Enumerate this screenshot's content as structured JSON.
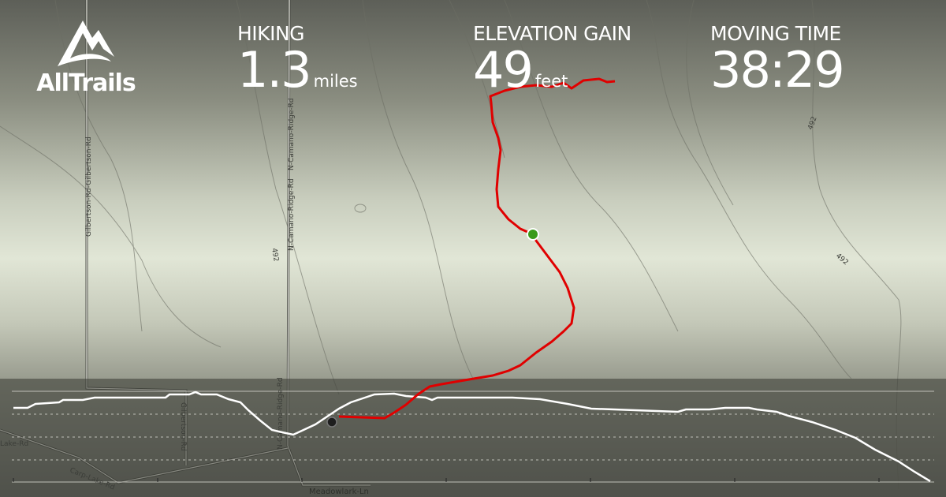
{
  "brand": {
    "name": "AllTrails"
  },
  "stats": [
    {
      "label": "HIKING",
      "value": "1.3",
      "unit": "miles"
    },
    {
      "label": "ELEVATION GAIN",
      "value": "49",
      "unit": "feet"
    },
    {
      "label": "MOVING TIME",
      "value": "38:29",
      "unit": ""
    }
  ],
  "map": {
    "roads": {
      "gilbertson_top": "Gilbertson-Rd-Gilbertson-Rd",
      "gilbertson": "Gilbertson-Rd",
      "camano_top": "N-Camano-Ridge-Rd",
      "camano": "N-Camano-Ridge-Rd",
      "camano_bottom": "N-Camano-Ridge-Rd",
      "carp_lake": "Carp-Lake-Rd",
      "lake": "Lake-Rd",
      "meadowlark": "Meadowlark-Ln"
    },
    "contour_label": "492",
    "track_color": "#e00000",
    "start_marker_color": "#3a9a1a",
    "end_marker_color": "#1e1e1e"
  }
}
